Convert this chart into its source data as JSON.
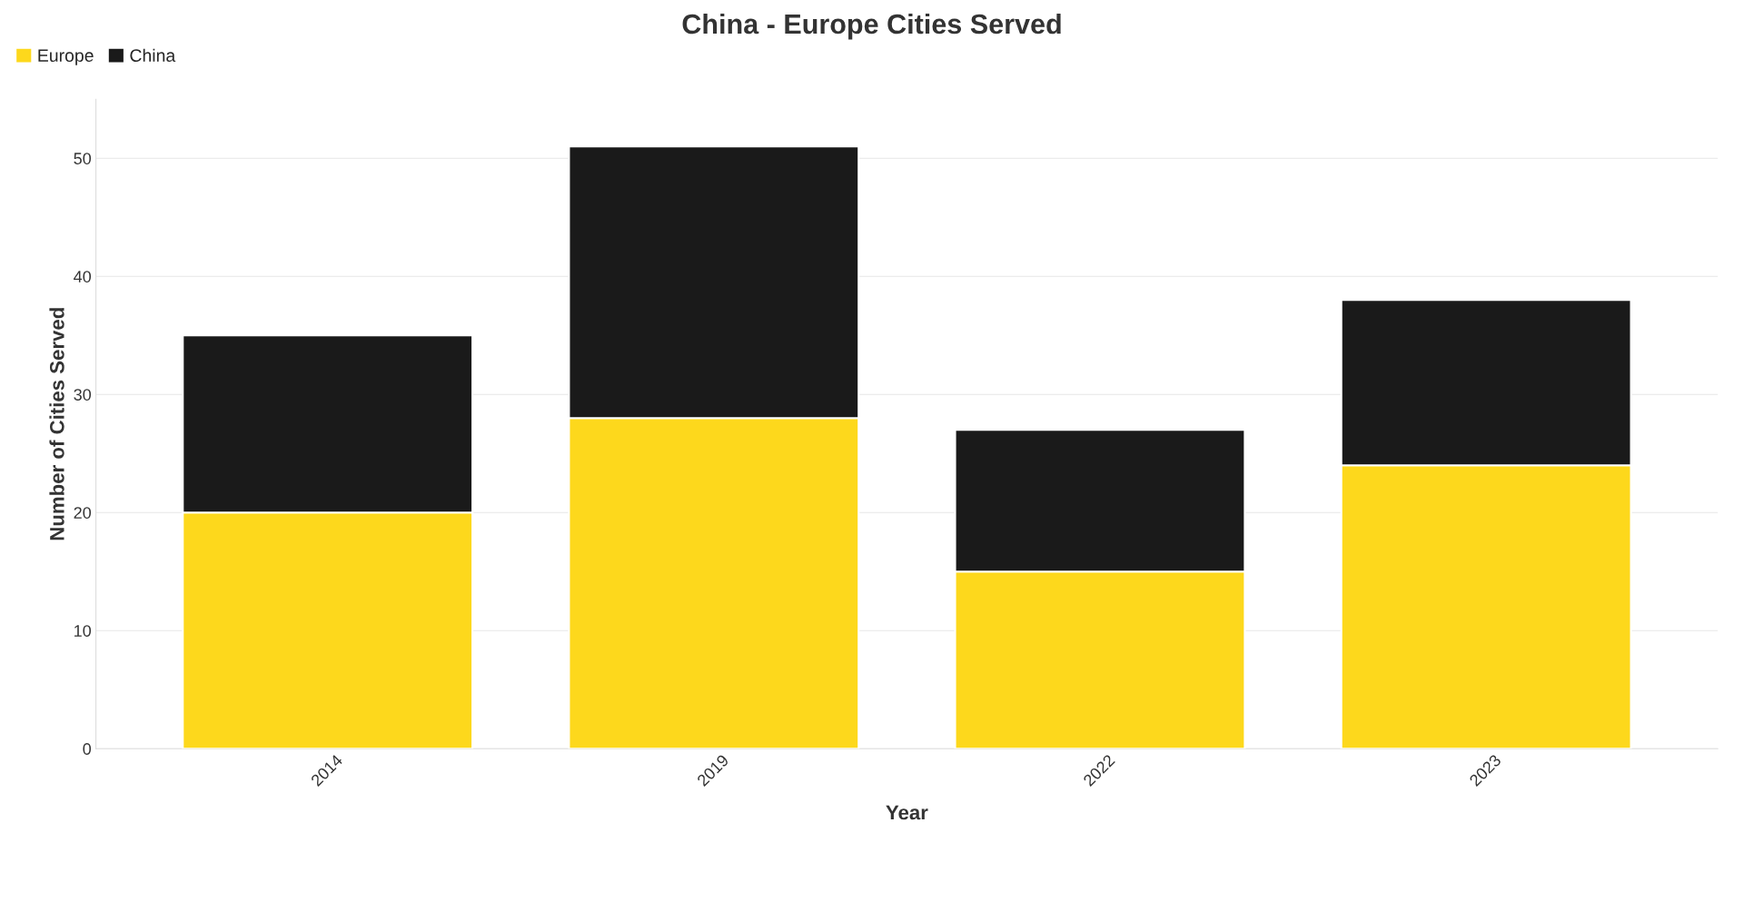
{
  "chart_data": {
    "type": "bar",
    "title": "China - Europe Cities Served",
    "xlabel": "Year",
    "ylabel": "Number of Cities Served",
    "categories": [
      "2014",
      "2019",
      "2022",
      "2023"
    ],
    "series": [
      {
        "name": "Europe",
        "color": "#fdd81c",
        "values": [
          20,
          28,
          15,
          24
        ]
      },
      {
        "name": "China",
        "color": "#1a1a1a",
        "values": [
          15,
          23,
          12,
          14
        ]
      }
    ],
    "stacked": true,
    "ylim": [
      0,
      55
    ],
    "yticks": [
      0,
      10,
      20,
      30,
      40,
      50
    ],
    "grid": "y",
    "legend": "top left"
  }
}
